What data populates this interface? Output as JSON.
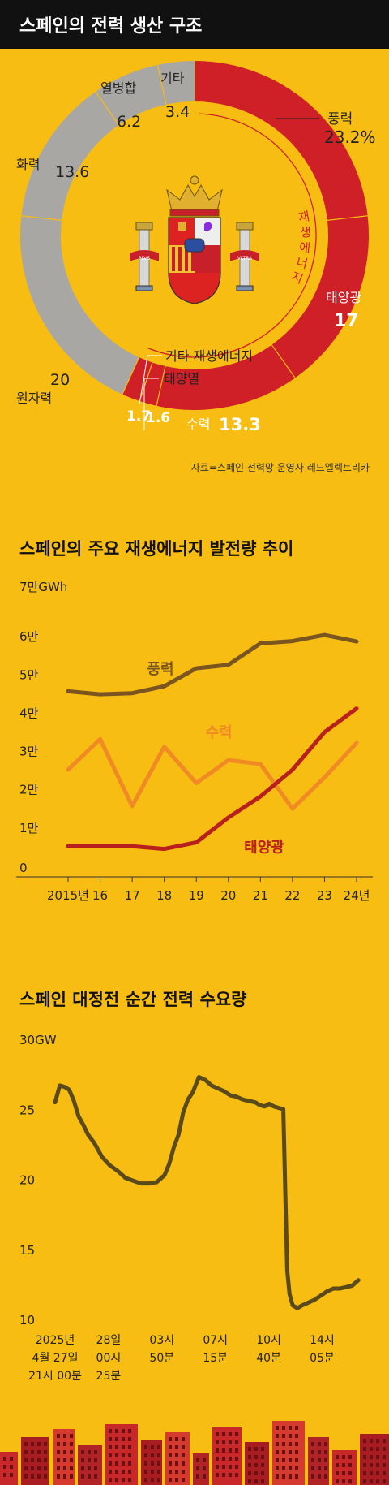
{
  "header": {
    "title": "스페인의 전력 생산 구조"
  },
  "colors": {
    "background": "#f7bd12",
    "title_bar": "#111111",
    "renewable_red": "#cf2027",
    "non_renewable_gray": "#a9a7a3",
    "wind_line": "#7a5520",
    "hydro_line": "#f08a24",
    "solar_line": "#b8201e",
    "demand_line": "#5a4a1a"
  },
  "emblem": {
    "name": "spain-coat-of-arms-icon",
    "motto": [
      "PLVS",
      "VLTRA"
    ]
  },
  "chart_data": [
    {
      "type": "pie",
      "variant": "donut",
      "unit": "%",
      "slices": [
        {
          "label": "풍력",
          "value": 23.2,
          "value_text": "23.2%",
          "group": "renewable"
        },
        {
          "label": "태양광",
          "value": 17,
          "value_text": "17",
          "group": "renewable"
        },
        {
          "label": "수력",
          "value": 13.3,
          "value_text": "13.3",
          "group": "renewable"
        },
        {
          "label": "태양열",
          "value": 1.6,
          "value_text": "1.6",
          "group": "renewable"
        },
        {
          "label": "기타 재생에너지",
          "value": 1.7,
          "value_text": "1.7",
          "group": "renewable"
        },
        {
          "label": "원자력",
          "value": 20,
          "value_text": "20",
          "group": "non-renewable"
        },
        {
          "label": "화력",
          "value": 13.6,
          "value_text": "13.6",
          "group": "non-renewable"
        },
        {
          "label": "열병합",
          "value": 6.2,
          "value_text": "6.2",
          "group": "non-renewable"
        },
        {
          "label": "기타",
          "value": 3.4,
          "value_text": "3.4",
          "group": "non-renewable"
        }
      ],
      "group_label": "재생에너지",
      "source": "자료=스페인 전력망 운영사 레드엘렉트리카"
    },
    {
      "type": "line",
      "title": "스페인의 주요 재생에너지 발전량 추이",
      "y_unit_label": "7만GWh",
      "y_ticks": [
        "0",
        "1만",
        "2만",
        "3만",
        "4만",
        "5만",
        "6만"
      ],
      "ylim": [
        0,
        70000
      ],
      "x": [
        2015,
        2016,
        2017,
        2018,
        2019,
        2020,
        2021,
        2022,
        2023,
        2024
      ],
      "x_labels": [
        "2015년",
        "16",
        "17",
        "18",
        "19",
        "20",
        "21",
        "22",
        "23",
        "24년"
      ],
      "series": [
        {
          "name": "풍력",
          "values": [
            48500,
            47700,
            48000,
            49800,
            54500,
            55400,
            61000,
            61600,
            63200,
            61500
          ]
        },
        {
          "name": "수력",
          "values": [
            28000,
            36000,
            18500,
            34000,
            24500,
            30500,
            29500,
            17800,
            26000,
            35000
          ]
        },
        {
          "name": "태양광",
          "values": [
            8000,
            8000,
            8000,
            7300,
            9000,
            15500,
            21000,
            28000,
            37800,
            44000
          ]
        }
      ]
    },
    {
      "type": "line",
      "title": "스페인 대정전 순간 전력 수요량",
      "y_unit_label": "30GW",
      "y_ticks": [
        "10",
        "15",
        "20",
        "25"
      ],
      "ylim": [
        10,
        30
      ],
      "x_labels": [
        [
          "2025년",
          "4월 27일",
          "21시 00분"
        ],
        [
          "28일",
          "00시",
          "25분"
        ],
        [
          "03시",
          "50분"
        ],
        [
          "07시",
          "15분"
        ],
        [
          "10시",
          "40분"
        ],
        [
          "14시",
          "05분"
        ]
      ],
      "x_tick_hours": [
        0,
        3.4167,
        6.8333,
        10.25,
        13.6667,
        17.0833
      ],
      "series": [
        {
          "name": "demand",
          "x_hours": [
            0,
            0.3,
            0.6,
            0.9,
            1.2,
            1.5,
            1.8,
            2.1,
            2.5,
            3.0,
            3.5,
            4.0,
            4.5,
            5.0,
            5.5,
            6.0,
            6.5,
            7.0,
            7.3,
            7.6,
            7.9,
            8.2,
            8.5,
            8.8,
            9.2,
            9.6,
            10.0,
            10.4,
            10.8,
            11.2,
            11.6,
            12.0,
            12.4,
            12.8,
            13.1,
            13.4,
            13.7,
            14.0,
            14.3,
            14.6,
            14.75,
            14.85,
            15.0,
            15.2,
            15.5,
            15.8,
            16.2,
            16.6,
            17.0,
            17.4,
            17.8,
            18.2,
            18.6,
            19.0,
            19.4
          ],
          "values": [
            25.5,
            26.7,
            26.6,
            26.4,
            25.6,
            24.5,
            23.9,
            23.2,
            22.6,
            21.6,
            21.0,
            20.6,
            20.1,
            19.9,
            19.7,
            19.7,
            19.8,
            20.3,
            21.1,
            22.3,
            23.2,
            24.8,
            25.7,
            26.2,
            27.3,
            27.1,
            26.7,
            26.5,
            26.3,
            26.0,
            25.9,
            25.7,
            25.6,
            25.5,
            25.3,
            25.2,
            25.4,
            25.2,
            25.1,
            25.0,
            18.0,
            13.5,
            11.8,
            11.0,
            10.8,
            11.0,
            11.2,
            11.4,
            11.7,
            12.0,
            12.2,
            12.2,
            12.3,
            12.4,
            12.8
          ]
        }
      ]
    }
  ],
  "labels": {
    "section2_title": "스페인의 주요 재생에너지 발전량 추이",
    "section3_title": "스페인 대정전 순간 전력 수요량",
    "line_series_labels": [
      "풍력",
      "수력",
      "태양광"
    ]
  }
}
